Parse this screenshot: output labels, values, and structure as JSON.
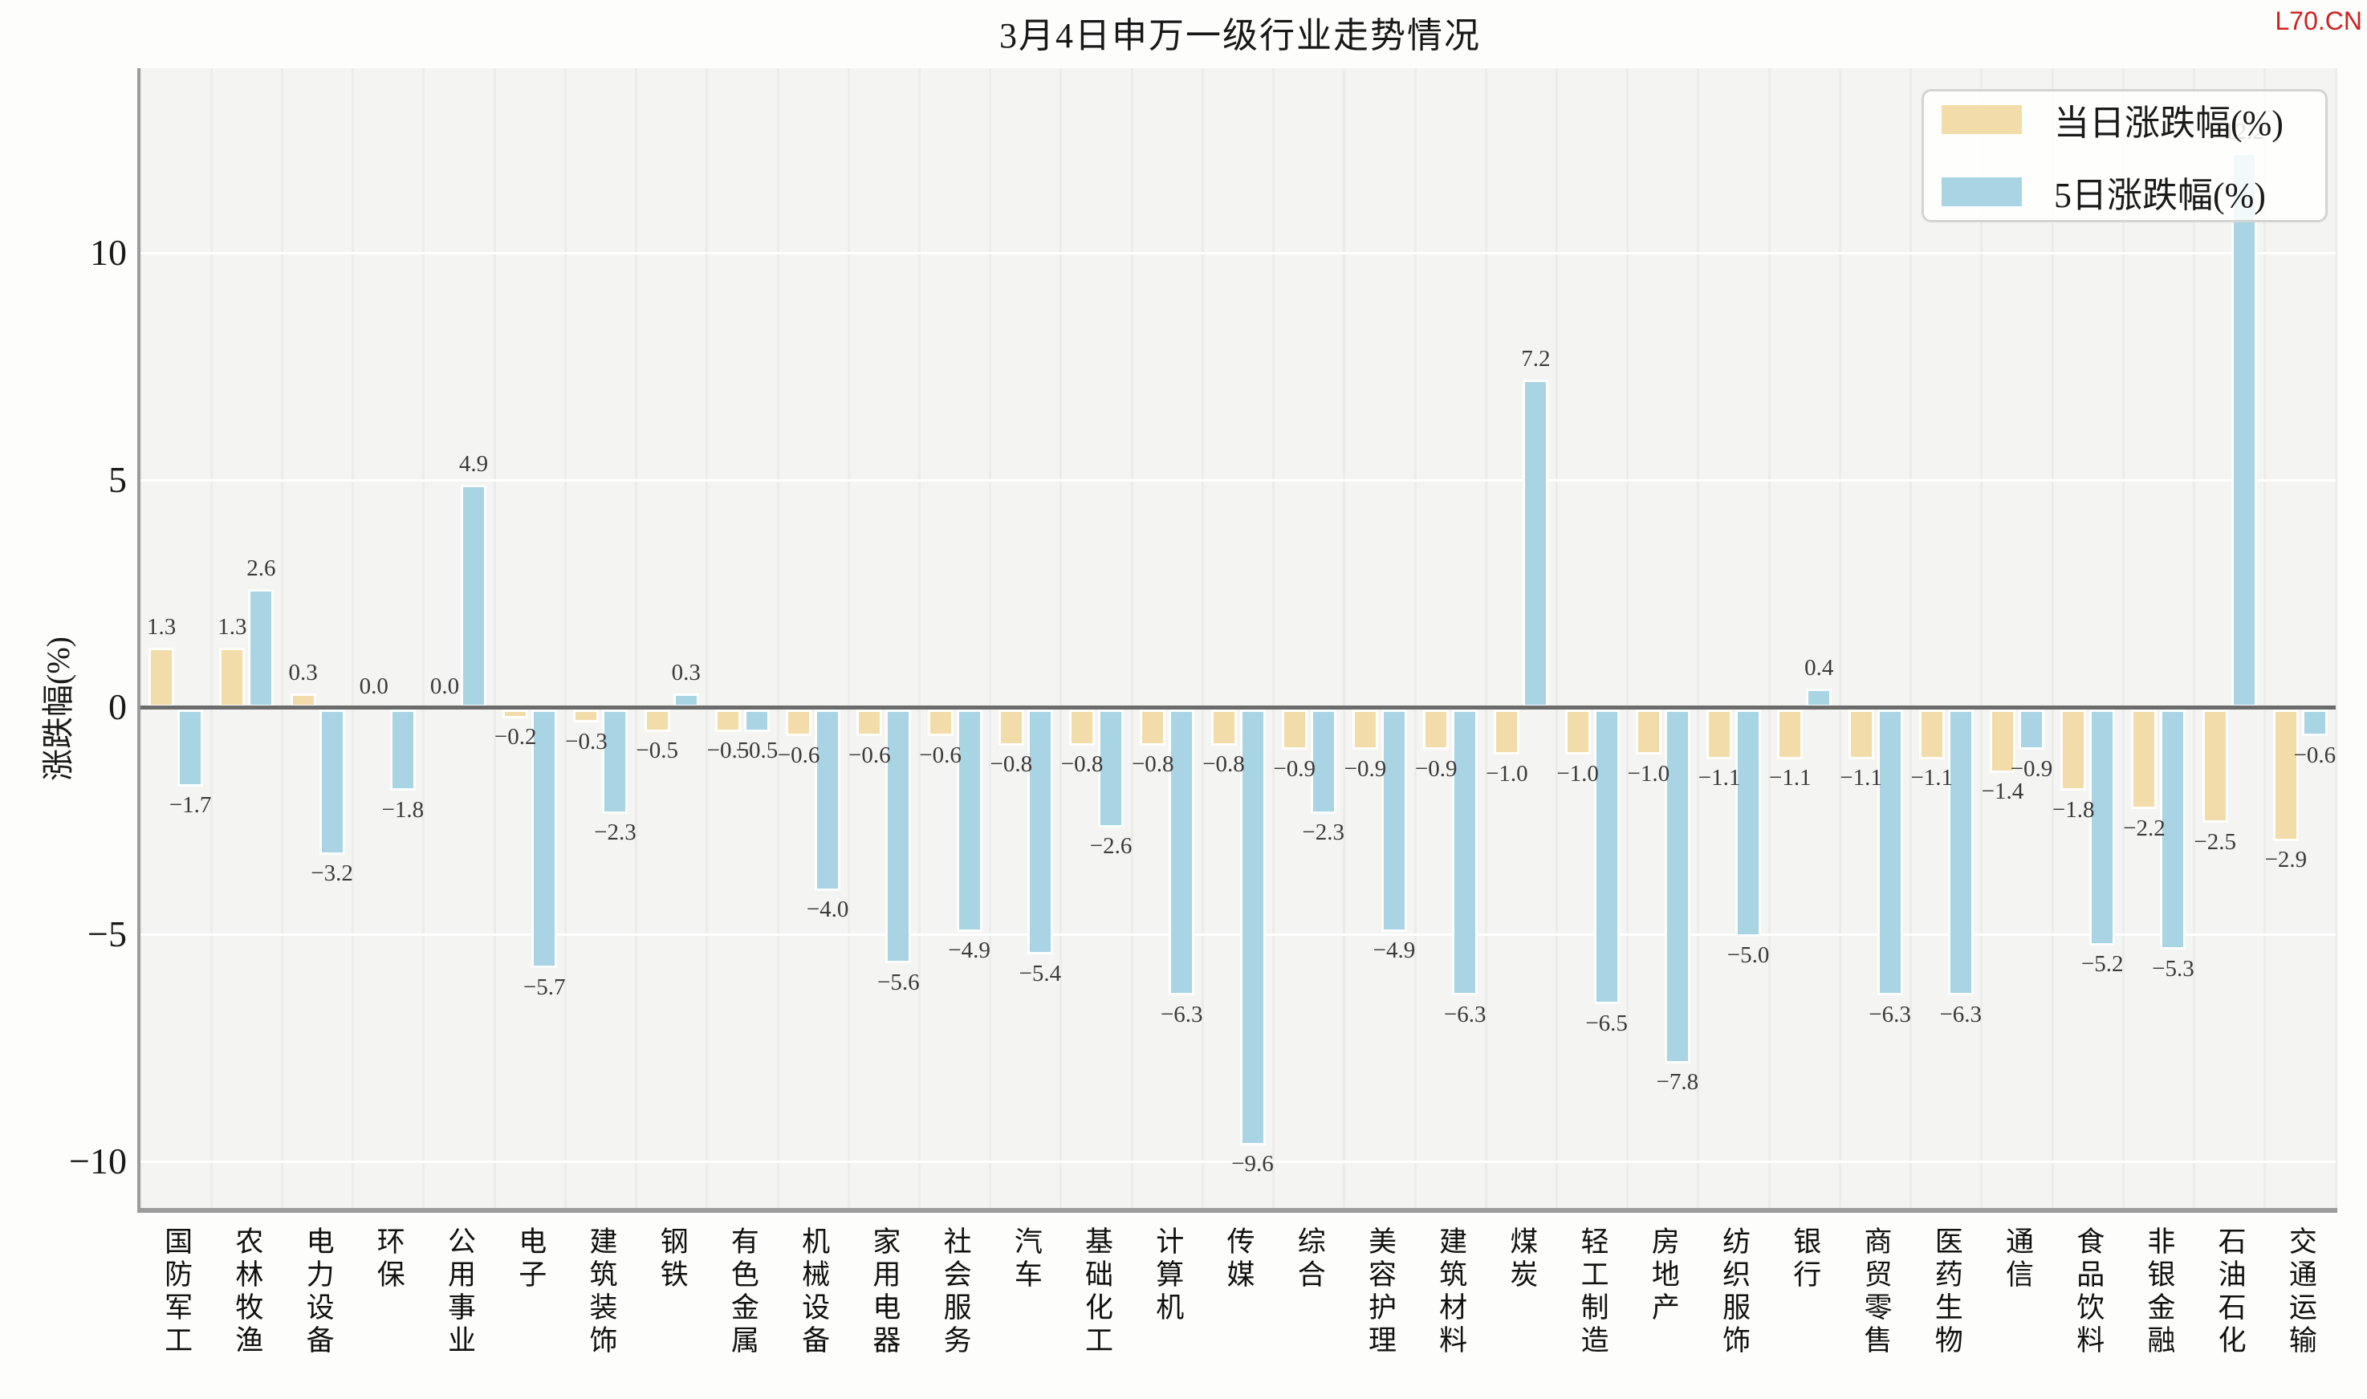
{
  "watermark": "L70.CN",
  "chart_data": {
    "type": "bar",
    "title": "3月4日申万一级行业走势情况",
    "ylabel": "涨跌幅(%)",
    "xlabel": "",
    "categories": [
      "国防军工",
      "农林牧渔",
      "电力设备",
      "环保",
      "公用事业",
      "电子",
      "建筑装饰",
      "钢铁",
      "有色金属",
      "机械设备",
      "家用电器",
      "社会服务",
      "汽车",
      "基础化工",
      "计算机",
      "传媒",
      "综合",
      "美容护理",
      "建筑材料",
      "煤炭",
      "轻工制造",
      "房地产",
      "纺织服饰",
      "银行",
      "商贸零售",
      "医药生物",
      "通信",
      "食品饮料",
      "非银金融",
      "石油石化",
      "交通运输"
    ],
    "series": [
      {
        "name": "当日涨跌幅(%)",
        "color": "#f2dcaa",
        "values": [
          1.3,
          1.3,
          0.3,
          0.0,
          0.0,
          -0.2,
          -0.3,
          -0.5,
          -0.5,
          -0.6,
          -0.6,
          -0.6,
          -0.8,
          -0.8,
          -0.8,
          -0.8,
          -0.9,
          -0.9,
          -0.9,
          -1.0,
          -1.0,
          -1.0,
          -1.1,
          -1.1,
          -1.1,
          -1.1,
          -1.4,
          -1.8,
          -2.2,
          -2.5,
          -2.9
        ]
      },
      {
        "name": "5日涨跌幅(%)",
        "color": "#a9d4e4",
        "values": [
          -1.7,
          2.6,
          -3.2,
          -1.8,
          4.9,
          -5.7,
          -2.3,
          0.3,
          -0.5,
          -4.0,
          -5.6,
          -4.9,
          -5.4,
          -2.6,
          -6.3,
          -9.6,
          -2.3,
          -4.9,
          -6.3,
          7.2,
          -6.5,
          -7.8,
          -5.0,
          0.4,
          -6.3,
          -6.3,
          -0.9,
          -5.2,
          -5.3,
          12.2,
          -0.6
        ]
      }
    ],
    "yticks": [
      10,
      5,
      0,
      -5,
      -10
    ],
    "ylim": [
      -11.0,
      14.1
    ],
    "grid": true,
    "value_labels": true,
    "legend_position": "top-right",
    "colors": {
      "plot_background": "#f4f4f2",
      "figure_background": "#fdfdfc",
      "zero_line": "#6b6b6b",
      "watermark_red": "#cc2222"
    }
  }
}
